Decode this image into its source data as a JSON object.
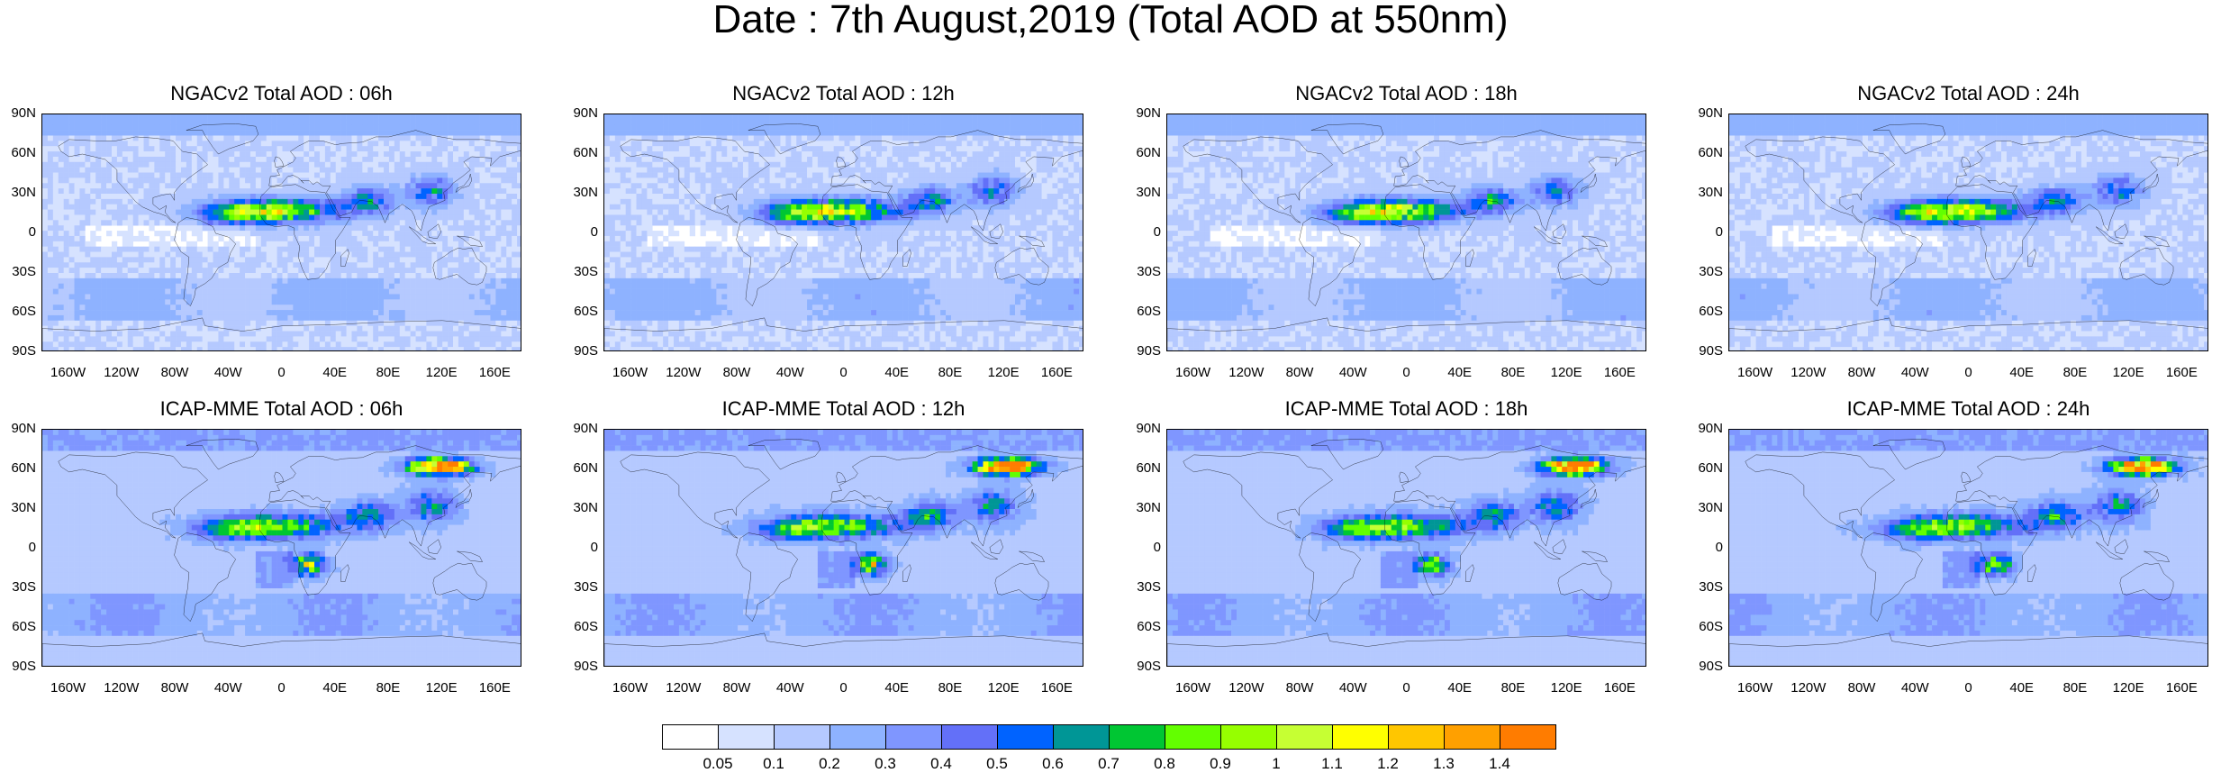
{
  "title": "Date : 7th August,2019 (Total AOD at 550nm)",
  "panels": [
    {
      "title": "NGACv2 Total AOD : 06h",
      "source": "NGACv2",
      "hour": "06h"
    },
    {
      "title": "NGACv2 Total AOD : 12h",
      "source": "NGACv2",
      "hour": "12h"
    },
    {
      "title": "NGACv2 Total AOD : 18h",
      "source": "NGACv2",
      "hour": "18h"
    },
    {
      "title": "NGACv2 Total AOD : 24h",
      "source": "NGACv2",
      "hour": "24h"
    },
    {
      "title": "ICAP-MME Total AOD : 06h",
      "source": "ICAP-MME",
      "hour": "06h"
    },
    {
      "title": "ICAP-MME Total AOD : 12h",
      "source": "ICAP-MME",
      "hour": "12h"
    },
    {
      "title": "ICAP-MME Total AOD : 18h",
      "source": "ICAP-MME",
      "hour": "18h"
    },
    {
      "title": "ICAP-MME Total AOD : 24h",
      "source": "ICAP-MME",
      "hour": "24h"
    }
  ],
  "lat_ticks": [
    "90N",
    "60N",
    "30N",
    "0",
    "30S",
    "60S",
    "90S"
  ],
  "lon_ticks": [
    "160W",
    "120W",
    "80W",
    "40W",
    "0",
    "40E",
    "80E",
    "120E",
    "160E"
  ],
  "colorbar": {
    "labels": [
      "0.05",
      "0.1",
      "0.2",
      "0.3",
      "0.4",
      "0.5",
      "0.6",
      "0.7",
      "0.8",
      "0.9",
      "1",
      "1.1",
      "1.2",
      "1.3",
      "1.4"
    ],
    "colors": [
      "#ffffff",
      "#d6e2ff",
      "#b5c9ff",
      "#8eb2ff",
      "#7f96ff",
      "#6370f8",
      "#0063ff",
      "#009696",
      "#00c633",
      "#63ff00",
      "#96ff00",
      "#c6ff33",
      "#ffff00",
      "#ffc600",
      "#ffa000",
      "#ff7c00",
      "#ff1900"
    ]
  }
}
